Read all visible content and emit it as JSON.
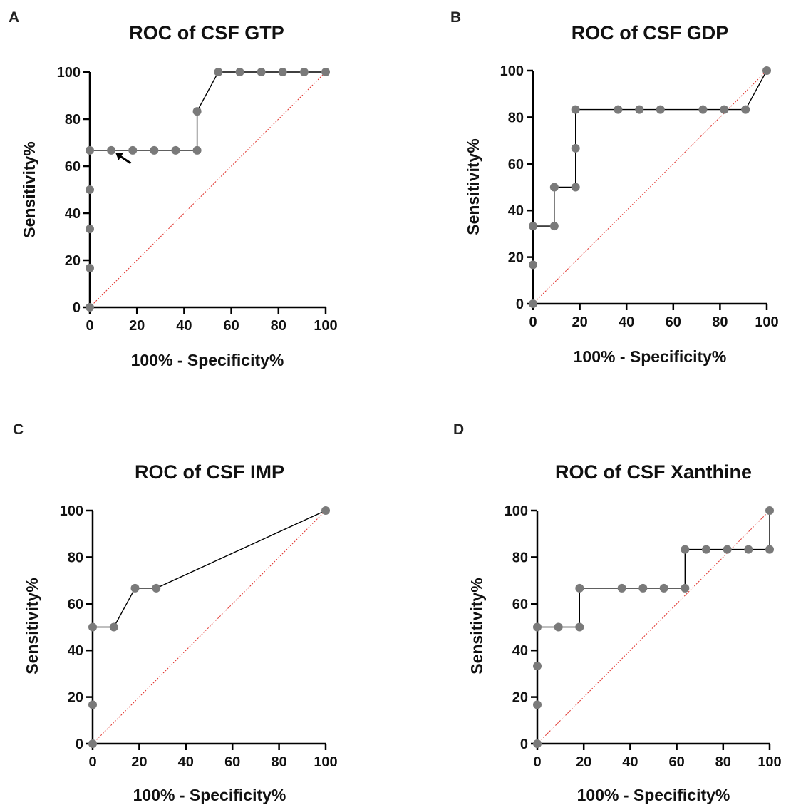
{
  "chart_data": [
    {
      "type": "line",
      "panel": "A",
      "title": "ROC of CSF GTP",
      "xlabel": "100% - Specificity%",
      "ylabel": "Sensitivity%",
      "xlim": [
        0,
        100
      ],
      "ylim": [
        0,
        100
      ],
      "xticks": [
        "0",
        "20",
        "40",
        "60",
        "80",
        "100"
      ],
      "yticks": [
        "0",
        "20",
        "40",
        "60",
        "80",
        "100"
      ],
      "grid": false,
      "reference_line": "diagonal",
      "annotation": "arrow",
      "points": [
        [
          0,
          0
        ],
        [
          0,
          16.7
        ],
        [
          0,
          33.3
        ],
        [
          0,
          50
        ],
        [
          0,
          66.7
        ],
        [
          9.1,
          66.7
        ],
        [
          18.2,
          66.7
        ],
        [
          27.3,
          66.7
        ],
        [
          36.4,
          66.7
        ],
        [
          45.5,
          66.7
        ],
        [
          45.5,
          83.3
        ],
        [
          54.5,
          100
        ],
        [
          63.6,
          100
        ],
        [
          72.7,
          100
        ],
        [
          81.8,
          100
        ],
        [
          90.9,
          100
        ],
        [
          100,
          100
        ]
      ]
    },
    {
      "type": "line",
      "panel": "B",
      "title": "ROC of CSF GDP",
      "xlabel": "100% - Specificity%",
      "ylabel": "Sensitivity%",
      "xlim": [
        0,
        100
      ],
      "ylim": [
        0,
        100
      ],
      "xticks": [
        "0",
        "20",
        "40",
        "60",
        "80",
        "100"
      ],
      "yticks": [
        "0",
        "20",
        "40",
        "60",
        "80",
        "100"
      ],
      "grid": false,
      "reference_line": "diagonal",
      "points": [
        [
          0,
          0
        ],
        [
          0,
          16.7
        ],
        [
          0,
          33.3
        ],
        [
          9.1,
          33.3
        ],
        [
          9.1,
          50
        ],
        [
          18.2,
          50
        ],
        [
          18.2,
          66.7
        ],
        [
          18.2,
          83.3
        ],
        [
          36.4,
          83.3
        ],
        [
          45.5,
          83.3
        ],
        [
          54.5,
          83.3
        ],
        [
          72.7,
          83.3
        ],
        [
          81.8,
          83.3
        ],
        [
          90.9,
          83.3
        ],
        [
          100,
          100
        ]
      ]
    },
    {
      "type": "line",
      "panel": "C",
      "title": "ROC of CSF IMP",
      "xlabel": "100% - Specificity%",
      "ylabel": "Sensitivity%",
      "xlim": [
        0,
        100
      ],
      "ylim": [
        0,
        100
      ],
      "xticks": [
        "0",
        "20",
        "40",
        "60",
        "80",
        "100"
      ],
      "yticks": [
        "0",
        "20",
        "40",
        "60",
        "80",
        "100"
      ],
      "grid": false,
      "reference_line": "diagonal",
      "points": [
        [
          0,
          0
        ],
        [
          0,
          16.7
        ],
        [
          0,
          50
        ],
        [
          9.1,
          50
        ],
        [
          18.2,
          66.7
        ],
        [
          27.3,
          66.7
        ],
        [
          100,
          100
        ]
      ]
    },
    {
      "type": "line",
      "panel": "D",
      "title": "ROC of CSF Xanthine",
      "xlabel": "100% - Specificity%",
      "ylabel": "Sensitivity%",
      "xlim": [
        0,
        100
      ],
      "ylim": [
        0,
        100
      ],
      "xticks": [
        "0",
        "20",
        "40",
        "60",
        "80",
        "100"
      ],
      "yticks": [
        "0",
        "20",
        "40",
        "60",
        "80",
        "100"
      ],
      "grid": false,
      "reference_line": "diagonal",
      "points": [
        [
          0,
          0
        ],
        [
          0,
          16.7
        ],
        [
          0,
          33.3
        ],
        [
          0,
          50
        ],
        [
          9.1,
          50
        ],
        [
          18.2,
          50
        ],
        [
          18.2,
          66.7
        ],
        [
          36.4,
          66.7
        ],
        [
          45.5,
          66.7
        ],
        [
          54.5,
          66.7
        ],
        [
          63.6,
          66.7
        ],
        [
          63.6,
          83.3
        ],
        [
          72.7,
          83.3
        ],
        [
          81.8,
          83.3
        ],
        [
          90.9,
          83.3
        ],
        [
          100,
          83.3
        ],
        [
          100,
          100
        ]
      ]
    }
  ]
}
